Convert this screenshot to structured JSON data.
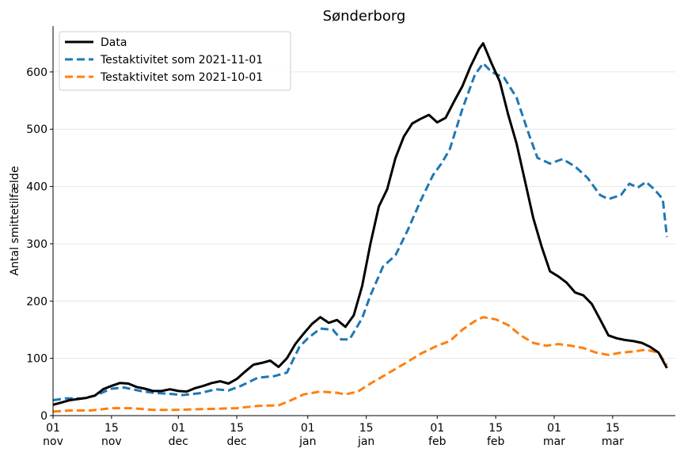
{
  "chart_data": {
    "type": "line",
    "title": "Sønderborg",
    "xlabel": "",
    "ylabel": "Antal smittetilfælde",
    "ylim": [
      0,
      680
    ],
    "yticks": [
      0,
      100,
      200,
      300,
      400,
      500,
      600
    ],
    "xlim": [
      "2021-11-01",
      "2022-03-30"
    ],
    "xticks": [
      {
        "date": "2021-11-01",
        "label": [
          "01",
          "nov"
        ]
      },
      {
        "date": "2021-11-15",
        "label": [
          "15",
          "nov"
        ]
      },
      {
        "date": "2021-12-01",
        "label": [
          "01",
          "dec"
        ]
      },
      {
        "date": "2021-12-15",
        "label": [
          "15",
          "dec"
        ]
      },
      {
        "date": "2022-01-01",
        "label": [
          "01",
          "jan"
        ]
      },
      {
        "date": "2022-01-15",
        "label": [
          "15",
          "jan"
        ]
      },
      {
        "date": "2022-02-01",
        "label": [
          "01",
          "feb"
        ]
      },
      {
        "date": "2022-02-15",
        "label": [
          "15",
          "feb"
        ]
      },
      {
        "date": "2022-03-01",
        "label": [
          "01",
          "mar"
        ]
      },
      {
        "date": "2022-03-15",
        "label": [
          "15",
          "mar"
        ]
      }
    ],
    "grid": "horizontal",
    "legend_position": "top-left",
    "series": [
      {
        "name": "Data",
        "color": "#000000",
        "style": "solid",
        "points": [
          [
            "2021-11-01",
            19
          ],
          [
            "2021-11-03",
            23
          ],
          [
            "2021-11-05",
            27
          ],
          [
            "2021-11-07",
            29
          ],
          [
            "2021-11-09",
            31
          ],
          [
            "2021-11-11",
            35
          ],
          [
            "2021-11-13",
            46
          ],
          [
            "2021-11-15",
            52
          ],
          [
            "2021-11-17",
            57
          ],
          [
            "2021-11-19",
            56
          ],
          [
            "2021-11-21",
            50
          ],
          [
            "2021-11-23",
            47
          ],
          [
            "2021-11-25",
            43
          ],
          [
            "2021-11-27",
            43
          ],
          [
            "2021-11-29",
            46
          ],
          [
            "2021-12-01",
            43
          ],
          [
            "2021-12-03",
            42
          ],
          [
            "2021-12-05",
            48
          ],
          [
            "2021-12-07",
            52
          ],
          [
            "2021-12-09",
            57
          ],
          [
            "2021-12-11",
            60
          ],
          [
            "2021-12-13",
            56
          ],
          [
            "2021-12-15",
            64
          ],
          [
            "2021-12-17",
            77
          ],
          [
            "2021-12-19",
            89
          ],
          [
            "2021-12-21",
            92
          ],
          [
            "2021-12-23",
            96
          ],
          [
            "2021-12-25",
            85
          ],
          [
            "2021-12-27",
            100
          ],
          [
            "2021-12-29",
            125
          ],
          [
            "2021-12-31",
            143
          ],
          [
            "2022-01-02",
            160
          ],
          [
            "2022-01-04",
            172
          ],
          [
            "2022-01-06",
            162
          ],
          [
            "2022-01-08",
            167
          ],
          [
            "2022-01-10",
            155
          ],
          [
            "2022-01-12",
            175
          ],
          [
            "2022-01-14",
            226
          ],
          [
            "2022-01-16",
            300
          ],
          [
            "2022-01-18",
            365
          ],
          [
            "2022-01-20",
            395
          ],
          [
            "2022-01-22",
            450
          ],
          [
            "2022-01-24",
            487
          ],
          [
            "2022-01-26",
            510
          ],
          [
            "2022-01-28",
            518
          ],
          [
            "2022-01-30",
            525
          ],
          [
            "2022-02-01",
            512
          ],
          [
            "2022-02-03",
            520
          ],
          [
            "2022-02-05",
            548
          ],
          [
            "2022-02-07",
            575
          ],
          [
            "2022-02-09",
            610
          ],
          [
            "2022-02-11",
            640
          ],
          [
            "2022-02-12",
            650
          ],
          [
            "2022-02-14",
            615
          ],
          [
            "2022-02-16",
            583
          ],
          [
            "2022-02-18",
            525
          ],
          [
            "2022-02-20",
            475
          ],
          [
            "2022-02-22",
            410
          ],
          [
            "2022-02-24",
            345
          ],
          [
            "2022-02-26",
            295
          ],
          [
            "2022-02-28",
            252
          ],
          [
            "2022-03-02",
            243
          ],
          [
            "2022-03-04",
            232
          ],
          [
            "2022-03-06",
            215
          ],
          [
            "2022-03-08",
            210
          ],
          [
            "2022-03-10",
            195
          ],
          [
            "2022-03-12",
            168
          ],
          [
            "2022-03-14",
            140
          ],
          [
            "2022-03-16",
            135
          ],
          [
            "2022-03-18",
            132
          ],
          [
            "2022-03-20",
            130
          ],
          [
            "2022-03-22",
            127
          ],
          [
            "2022-03-24",
            120
          ],
          [
            "2022-03-26",
            110
          ],
          [
            "2022-03-28",
            83
          ]
        ]
      },
      {
        "name": "Testaktivitet som 2021-11-01",
        "color": "#1f77b4",
        "style": "dashed",
        "points": [
          [
            "2021-11-01",
            27
          ],
          [
            "2021-11-04",
            30
          ],
          [
            "2021-11-08",
            30
          ],
          [
            "2021-11-11",
            35
          ],
          [
            "2021-11-15",
            47
          ],
          [
            "2021-11-18",
            49
          ],
          [
            "2021-11-22",
            43
          ],
          [
            "2021-11-25",
            40
          ],
          [
            "2021-11-29",
            38
          ],
          [
            "2021-12-02",
            36
          ],
          [
            "2021-12-06",
            39
          ],
          [
            "2021-12-10",
            46
          ],
          [
            "2021-12-13",
            44
          ],
          [
            "2021-12-16",
            52
          ],
          [
            "2021-12-20",
            66
          ],
          [
            "2021-12-24",
            69
          ],
          [
            "2021-12-27",
            75
          ],
          [
            "2021-12-30",
            120
          ],
          [
            "2022-01-01",
            135
          ],
          [
            "2022-01-04",
            152
          ],
          [
            "2022-01-07",
            150
          ],
          [
            "2022-01-09",
            133
          ],
          [
            "2022-01-11",
            133
          ],
          [
            "2022-01-14",
            170
          ],
          [
            "2022-01-16",
            210
          ],
          [
            "2022-01-19",
            260
          ],
          [
            "2022-01-22",
            280
          ],
          [
            "2022-01-25",
            325
          ],
          [
            "2022-01-28",
            375
          ],
          [
            "2022-01-31",
            420
          ],
          [
            "2022-02-02",
            440
          ],
          [
            "2022-02-04",
            465
          ],
          [
            "2022-02-07",
            535
          ],
          [
            "2022-02-10",
            595
          ],
          [
            "2022-02-12",
            615
          ],
          [
            "2022-02-14",
            600
          ],
          [
            "2022-02-17",
            590
          ],
          [
            "2022-02-20",
            555
          ],
          [
            "2022-02-23",
            490
          ],
          [
            "2022-02-25",
            450
          ],
          [
            "2022-02-28",
            440
          ],
          [
            "2022-03-03",
            448
          ],
          [
            "2022-03-06",
            435
          ],
          [
            "2022-03-09",
            415
          ],
          [
            "2022-03-12",
            385
          ],
          [
            "2022-03-14",
            378
          ],
          [
            "2022-03-17",
            385
          ],
          [
            "2022-03-19",
            405
          ],
          [
            "2022-03-21",
            398
          ],
          [
            "2022-03-23",
            408
          ],
          [
            "2022-03-25",
            395
          ],
          [
            "2022-03-27",
            378
          ],
          [
            "2022-03-28",
            312
          ]
        ]
      },
      {
        "name": "Testaktivitet som 2021-10-01",
        "color": "#ff7f0e",
        "style": "dashed",
        "points": [
          [
            "2021-11-01",
            7
          ],
          [
            "2021-11-05",
            9
          ],
          [
            "2021-11-10",
            9
          ],
          [
            "2021-11-15",
            13
          ],
          [
            "2021-11-20",
            13
          ],
          [
            "2021-11-25",
            10
          ],
          [
            "2021-11-30",
            10
          ],
          [
            "2021-12-05",
            11
          ],
          [
            "2021-12-10",
            12
          ],
          [
            "2021-12-15",
            13
          ],
          [
            "2021-12-20",
            17
          ],
          [
            "2021-12-25",
            18
          ],
          [
            "2021-12-28",
            27
          ],
          [
            "2021-12-31",
            37
          ],
          [
            "2022-01-04",
            42
          ],
          [
            "2022-01-08",
            40
          ],
          [
            "2022-01-10",
            37
          ],
          [
            "2022-01-13",
            42
          ],
          [
            "2022-01-16",
            56
          ],
          [
            "2022-01-20",
            73
          ],
          [
            "2022-01-24",
            90
          ],
          [
            "2022-01-28",
            108
          ],
          [
            "2022-02-01",
            122
          ],
          [
            "2022-02-04",
            130
          ],
          [
            "2022-02-07",
            150
          ],
          [
            "2022-02-10",
            165
          ],
          [
            "2022-02-12",
            172
          ],
          [
            "2022-02-15",
            168
          ],
          [
            "2022-02-18",
            158
          ],
          [
            "2022-02-21",
            140
          ],
          [
            "2022-02-24",
            127
          ],
          [
            "2022-02-27",
            122
          ],
          [
            "2022-03-02",
            125
          ],
          [
            "2022-03-05",
            122
          ],
          [
            "2022-03-08",
            118
          ],
          [
            "2022-03-11",
            110
          ],
          [
            "2022-03-14",
            106
          ],
          [
            "2022-03-17",
            110
          ],
          [
            "2022-03-20",
            112
          ],
          [
            "2022-03-23",
            115
          ],
          [
            "2022-03-26",
            110
          ],
          [
            "2022-03-28",
            88
          ]
        ]
      }
    ]
  }
}
